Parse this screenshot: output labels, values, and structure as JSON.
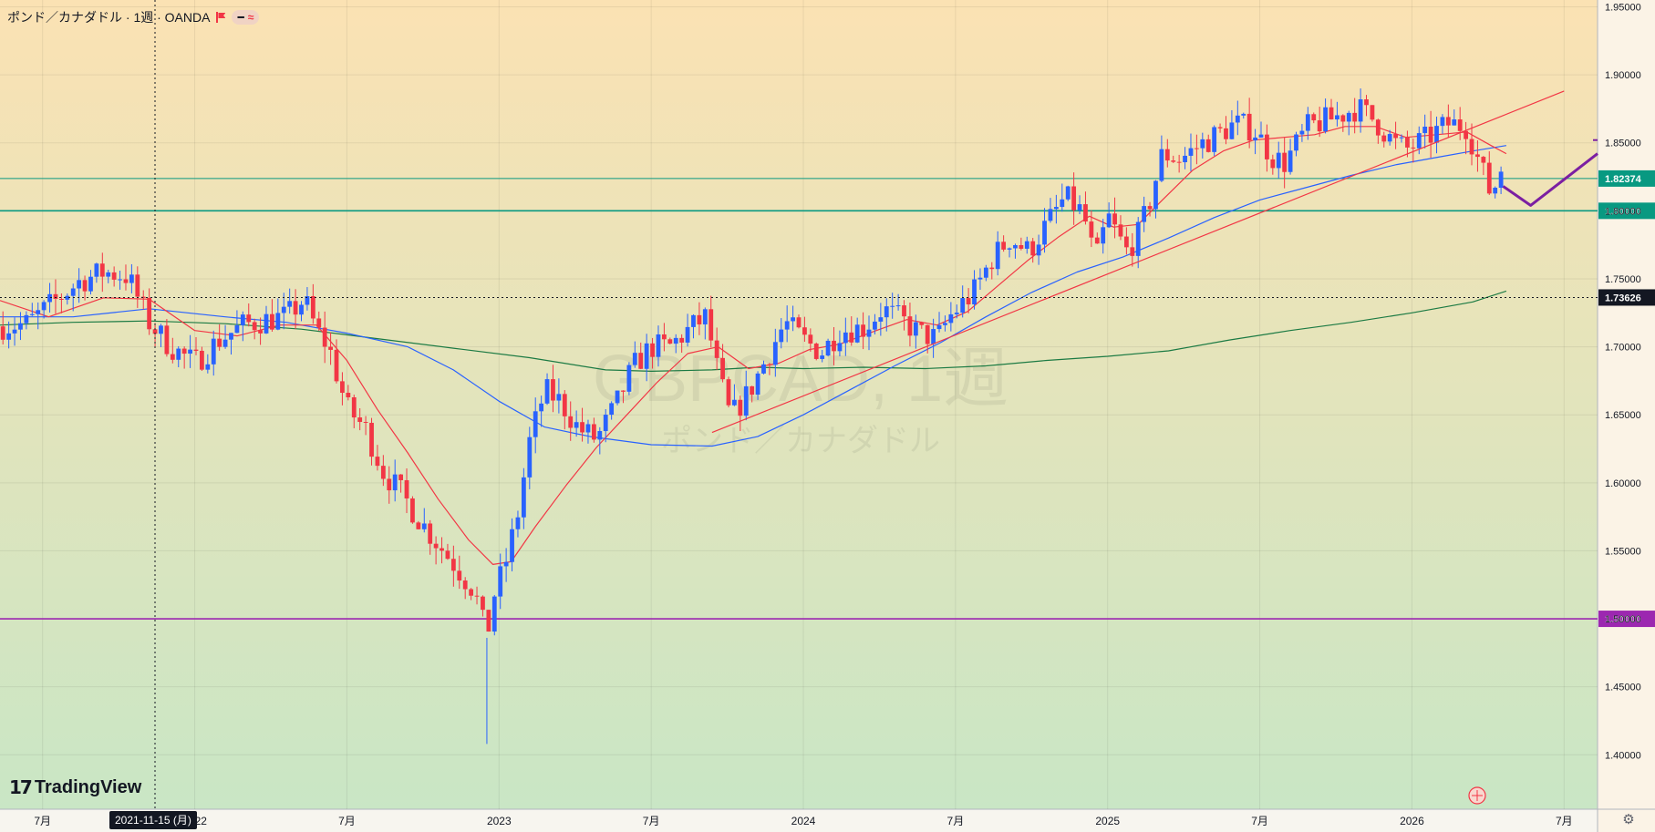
{
  "header": {
    "title": "ポンド／カナダドル · 1週 · OANDA",
    "pill_dash": "━",
    "pill_approx": "≈"
  },
  "watermark": {
    "symbol": "GBPCAD, 1週",
    "name": "ポンド／カナダドル"
  },
  "logo": {
    "mark": "𝟭𝟳",
    "text": "TradingView"
  },
  "crosshair": {
    "date_label": "2021-11-15 (月)",
    "price_label": "1.73626"
  },
  "colors": {
    "up": "#2962ff",
    "down": "#f23645",
    "ma_fast": "#f23645",
    "ma_mid": "#2962ff",
    "ma_slow": "#1b7a43",
    "teal_line": "#089981",
    "purple_line": "#9c27b0",
    "trendline": "#f23645",
    "projection": "#7b1fa2",
    "bg_top": "#fbe2b3",
    "bg_bottom": "#c9e6c5"
  },
  "chart_data": {
    "type": "candlestick",
    "y_axis": {
      "range": [
        1.36,
        1.955
      ],
      "tick_labels": [
        "1.95000",
        "1.90000",
        "1.85000",
        "1.80000",
        "1.75000",
        "1.70000",
        "1.65000",
        "1.60000",
        "1.55000",
        "1.50000",
        "1.45000",
        "1.40000"
      ],
      "ticks": [
        1.95,
        1.9,
        1.85,
        1.8,
        1.75,
        1.7,
        1.65,
        1.6,
        1.55,
        1.5,
        1.45,
        1.4
      ]
    },
    "x_axis": {
      "tick_labels": [
        "7月",
        "2022",
        "7月",
        "2023",
        "7月",
        "2024",
        "7月",
        "2025",
        "7月",
        "2026",
        "7月"
      ],
      "ticks": [
        2021.5,
        2022.0,
        2022.5,
        2023.0,
        2023.5,
        2024.0,
        2024.5,
        2025.0,
        2025.5,
        2026.0,
        2026.5
      ],
      "range": [
        2021.36,
        2026.61
      ]
    },
    "horizontal_levels": [
      {
        "value": 1.82374,
        "label": "1.82374",
        "style": "teal"
      },
      {
        "value": 1.8,
        "label": "1.80000",
        "style": "teal"
      },
      {
        "value": 1.5,
        "label": "1.50000",
        "style": "purple"
      }
    ],
    "trendline": {
      "start": [
        2023.7,
        1.637
      ],
      "end": [
        2026.5,
        1.888
      ]
    },
    "projection_path": [
      [
        2026.3,
        1.818
      ],
      [
        2026.39,
        1.804
      ],
      [
        2026.61,
        1.842
      ]
    ],
    "key_points": [
      [
        2021.36,
        1.715
      ],
      [
        2021.45,
        1.717
      ],
      [
        2021.55,
        1.735
      ],
      [
        2021.62,
        1.748
      ],
      [
        2021.7,
        1.755
      ],
      [
        2021.78,
        1.752
      ],
      [
        2021.85,
        1.718
      ],
      [
        2021.92,
        1.7
      ],
      [
        2022.0,
        1.688
      ],
      [
        2022.08,
        1.705
      ],
      [
        2022.16,
        1.716
      ],
      [
        2022.24,
        1.72
      ],
      [
        2022.3,
        1.722
      ],
      [
        2022.36,
        1.735
      ],
      [
        2022.4,
        1.712
      ],
      [
        2022.44,
        1.7
      ],
      [
        2022.5,
        1.655
      ],
      [
        2022.56,
        1.64
      ],
      [
        2022.62,
        1.608
      ],
      [
        2022.68,
        1.592
      ],
      [
        2022.74,
        1.572
      ],
      [
        2022.8,
        1.555
      ],
      [
        2022.86,
        1.538
      ],
      [
        2022.92,
        1.52
      ],
      [
        2022.94,
        1.502
      ],
      [
        2022.96,
        1.486
      ],
      [
        2022.98,
        1.515
      ],
      [
        2023.02,
        1.54
      ],
      [
        2023.06,
        1.575
      ],
      [
        2023.1,
        1.63
      ],
      [
        2023.15,
        1.668
      ],
      [
        2023.2,
        1.66
      ],
      [
        2023.26,
        1.64
      ],
      [
        2023.32,
        1.632
      ],
      [
        2023.38,
        1.655
      ],
      [
        2023.44,
        1.685
      ],
      [
        2023.5,
        1.7
      ],
      [
        2023.56,
        1.7
      ],
      [
        2023.62,
        1.712
      ],
      [
        2023.68,
        1.722
      ],
      [
        2023.72,
        1.68
      ],
      [
        2023.76,
        1.648
      ],
      [
        2023.82,
        1.666
      ],
      [
        2023.88,
        1.692
      ],
      [
        2023.94,
        1.718
      ],
      [
        2024.0,
        1.705
      ],
      [
        2024.06,
        1.696
      ],
      [
        2024.12,
        1.712
      ],
      [
        2024.2,
        1.714
      ],
      [
        2024.26,
        1.728
      ],
      [
        2024.32,
        1.72
      ],
      [
        2024.38,
        1.71
      ],
      [
        2024.44,
        1.706
      ],
      [
        2024.48,
        1.722
      ],
      [
        2024.56,
        1.74
      ],
      [
        2024.62,
        1.765
      ],
      [
        2024.68,
        1.78
      ],
      [
        2024.74,
        1.77
      ],
      [
        2024.8,
        1.79
      ],
      [
        2024.86,
        1.81
      ],
      [
        2024.92,
        1.798
      ],
      [
        2024.96,
        1.762
      ],
      [
        2025.0,
        1.796
      ],
      [
        2025.06,
        1.77
      ],
      [
        2025.1,
        1.782
      ],
      [
        2025.14,
        1.808
      ],
      [
        2025.18,
        1.842
      ],
      [
        2025.24,
        1.838
      ],
      [
        2025.3,
        1.848
      ],
      [
        2025.36,
        1.856
      ],
      [
        2025.42,
        1.864
      ],
      [
        2025.48,
        1.86
      ],
      [
        2025.54,
        1.84
      ],
      [
        2025.58,
        1.835
      ],
      [
        2025.66,
        1.862
      ],
      [
        2025.74,
        1.868
      ],
      [
        2025.82,
        1.876
      ],
      [
        2025.88,
        1.866
      ],
      [
        2025.94,
        1.85
      ],
      [
        2025.98,
        1.845
      ],
      [
        2026.04,
        1.852
      ],
      [
        2026.12,
        1.864
      ],
      [
        2026.18,
        1.862
      ],
      [
        2026.22,
        1.836
      ],
      [
        2026.26,
        1.812
      ],
      [
        2026.28,
        1.822
      ],
      [
        2026.31,
        1.838
      ]
    ],
    "ma_fast_points": [
      [
        2021.36,
        1.734
      ],
      [
        2021.52,
        1.722
      ],
      [
        2021.7,
        1.736
      ],
      [
        2021.85,
        1.735
      ],
      [
        2022.0,
        1.712
      ],
      [
        2022.14,
        1.708
      ],
      [
        2022.28,
        1.716
      ],
      [
        2022.4,
        1.716
      ],
      [
        2022.5,
        1.69
      ],
      [
        2022.6,
        1.654
      ],
      [
        2022.7,
        1.622
      ],
      [
        2022.8,
        1.588
      ],
      [
        2022.9,
        1.558
      ],
      [
        2022.98,
        1.54
      ],
      [
        2023.04,
        1.542
      ],
      [
        2023.12,
        1.568
      ],
      [
        2023.22,
        1.598
      ],
      [
        2023.32,
        1.626
      ],
      [
        2023.42,
        1.65
      ],
      [
        2023.52,
        1.674
      ],
      [
        2023.62,
        1.695
      ],
      [
        2023.72,
        1.7
      ],
      [
        2023.82,
        1.684
      ],
      [
        2023.92,
        1.688
      ],
      [
        2024.02,
        1.698
      ],
      [
        2024.12,
        1.702
      ],
      [
        2024.24,
        1.712
      ],
      [
        2024.34,
        1.72
      ],
      [
        2024.44,
        1.716
      ],
      [
        2024.54,
        1.726
      ],
      [
        2024.64,
        1.745
      ],
      [
        2024.74,
        1.764
      ],
      [
        2024.84,
        1.781
      ],
      [
        2024.94,
        1.796
      ],
      [
        2025.02,
        1.788
      ],
      [
        2025.1,
        1.79
      ],
      [
        2025.18,
        1.808
      ],
      [
        2025.28,
        1.83
      ],
      [
        2025.38,
        1.844
      ],
      [
        2025.48,
        1.852
      ],
      [
        2025.58,
        1.854
      ],
      [
        2025.68,
        1.856
      ],
      [
        2025.78,
        1.862
      ],
      [
        2025.88,
        1.862
      ],
      [
        2025.98,
        1.854
      ],
      [
        2026.08,
        1.856
      ],
      [
        2026.18,
        1.858
      ],
      [
        2026.26,
        1.848
      ],
      [
        2026.31,
        1.842
      ]
    ],
    "ma_mid_points": [
      [
        2021.36,
        1.722
      ],
      [
        2021.6,
        1.722
      ],
      [
        2021.85,
        1.728
      ],
      [
        2022.1,
        1.722
      ],
      [
        2022.3,
        1.718
      ],
      [
        2022.5,
        1.71
      ],
      [
        2022.7,
        1.7
      ],
      [
        2022.85,
        1.683
      ],
      [
        2023.0,
        1.66
      ],
      [
        2023.15,
        1.641
      ],
      [
        2023.3,
        1.634
      ],
      [
        2023.5,
        1.628
      ],
      [
        2023.7,
        1.627
      ],
      [
        2023.85,
        1.634
      ],
      [
        2024.0,
        1.65
      ],
      [
        2024.15,
        1.668
      ],
      [
        2024.3,
        1.686
      ],
      [
        2024.45,
        1.703
      ],
      [
        2024.6,
        1.722
      ],
      [
        2024.75,
        1.74
      ],
      [
        2024.9,
        1.755
      ],
      [
        2025.05,
        1.766
      ],
      [
        2025.2,
        1.78
      ],
      [
        2025.35,
        1.795
      ],
      [
        2025.5,
        1.808
      ],
      [
        2025.65,
        1.817
      ],
      [
        2025.8,
        1.826
      ],
      [
        2025.95,
        1.834
      ],
      [
        2026.1,
        1.84
      ],
      [
        2026.2,
        1.844
      ],
      [
        2026.31,
        1.848
      ]
    ],
    "ma_slow_points": [
      [
        2021.36,
        1.716
      ],
      [
        2021.6,
        1.718
      ],
      [
        2021.85,
        1.719
      ],
      [
        2022.1,
        1.717
      ],
      [
        2022.35,
        1.713
      ],
      [
        2022.6,
        1.706
      ],
      [
        2022.85,
        1.699
      ],
      [
        2023.1,
        1.692
      ],
      [
        2023.35,
        1.683
      ],
      [
        2023.5,
        1.682
      ],
      [
        2023.7,
        1.683
      ],
      [
        2023.85,
        1.685
      ],
      [
        2024.0,
        1.684
      ],
      [
        2024.2,
        1.685
      ],
      [
        2024.4,
        1.684
      ],
      [
        2024.6,
        1.686
      ],
      [
        2024.8,
        1.69
      ],
      [
        2025.0,
        1.693
      ],
      [
        2025.2,
        1.697
      ],
      [
        2025.4,
        1.705
      ],
      [
        2025.6,
        1.712
      ],
      [
        2025.8,
        1.718
      ],
      [
        2026.0,
        1.725
      ],
      [
        2026.2,
        1.733
      ],
      [
        2026.31,
        1.741
      ]
    ]
  }
}
